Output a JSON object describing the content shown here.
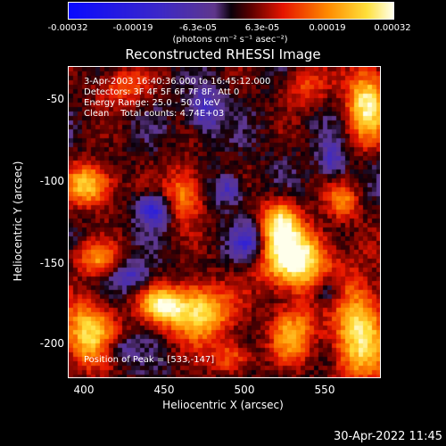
{
  "colorbar": {
    "ticks": [
      "-0.00032",
      "-0.00019",
      "-6.3e-05",
      "6.3e-05",
      "0.00019",
      "0.00032"
    ],
    "tick_values": [
      -0.00032,
      -0.00019,
      -6.3e-05,
      6.3e-05,
      0.00019,
      0.00032
    ],
    "units": "(photons cm⁻² s⁻¹ asec⁻²)"
  },
  "chart_data": {
    "type": "heatmap",
    "title": "Reconstructed RHESSI Image",
    "xlabel": "Heliocentric X (arcsec)",
    "ylabel": "Heliocentric Y (arcsec)",
    "xlim": [
      387,
      583
    ],
    "ylim": [
      -222,
      -33
    ],
    "xticks": [
      400,
      450,
      500,
      550
    ],
    "yticks": [
      -50,
      -100,
      -150,
      -200
    ],
    "zlim": [
      -0.00032,
      0.00032
    ],
    "peak": [
      533,
      -147
    ],
    "features": [
      {
        "x": 530,
        "y": -150,
        "amp": 1.0,
        "sx": 15,
        "sy": 13
      },
      {
        "x": 520,
        "y": -128,
        "amp": 0.7,
        "sx": 8,
        "sy": 10
      },
      {
        "x": 468,
        "y": -182,
        "amp": 0.85,
        "sx": 14,
        "sy": 12
      },
      {
        "x": 445,
        "y": -178,
        "amp": 0.7,
        "sx": 9,
        "sy": 7
      },
      {
        "x": 400,
        "y": -195,
        "amp": 0.75,
        "sx": 12,
        "sy": 14
      },
      {
        "x": 570,
        "y": -195,
        "amp": 0.8,
        "sx": 12,
        "sy": 22
      },
      {
        "x": 575,
        "y": -55,
        "amp": 0.85,
        "sx": 9,
        "sy": 16
      },
      {
        "x": 400,
        "y": -105,
        "amp": 0.75,
        "sx": 11,
        "sy": 9
      },
      {
        "x": 460,
        "y": -110,
        "amp": 0.55,
        "sx": 8,
        "sy": 12
      },
      {
        "x": 528,
        "y": -195,
        "amp": 0.6,
        "sx": 10,
        "sy": 12
      },
      {
        "x": 405,
        "y": -150,
        "amp": 0.5,
        "sx": 10,
        "sy": 7
      },
      {
        "x": 560,
        "y": -115,
        "amp": 0.5,
        "sx": 7,
        "sy": 8
      },
      {
        "x": 490,
        "y": -210,
        "amp": 0.45,
        "sx": 9,
        "sy": 7
      },
      {
        "x": 420,
        "y": -45,
        "amp": 0.4,
        "sx": 12,
        "sy": 8
      },
      {
        "x": 535,
        "y": -45,
        "amp": 0.35,
        "sx": 10,
        "sy": 8
      },
      {
        "x": 440,
        "y": -120,
        "amp": -0.6,
        "sx": 7,
        "sy": 6
      },
      {
        "x": 500,
        "y": -140,
        "amp": -0.5,
        "sx": 7,
        "sy": 7
      },
      {
        "x": 473,
        "y": -60,
        "amp": -0.5,
        "sx": 7,
        "sy": 9
      },
      {
        "x": 488,
        "y": -108,
        "amp": -0.45,
        "sx": 6,
        "sy": 6
      },
      {
        "x": 550,
        "y": -170,
        "amp": -0.4,
        "sx": 6,
        "sy": 7
      },
      {
        "x": 425,
        "y": -160,
        "amp": -0.4,
        "sx": 8,
        "sy": 6
      },
      {
        "x": 553,
        "y": -90,
        "amp": -0.4,
        "sx": 6,
        "sy": 8
      },
      {
        "x": 418,
        "y": -205,
        "amp": -0.35,
        "sx": 8,
        "sy": 6
      }
    ]
  },
  "annotations": {
    "line1": "3-Apr-2003 16:40:36.000 to 16:45:12.000",
    "line2": "Detectors: 3F 4F 5F 6F 7F 8F, Att 0",
    "line3": "Energy Range: 25.0 - 50.0 keV",
    "line4": "Clean    Total counts: 4.74E+03",
    "peak": "Position of Peak = [533,-147]"
  },
  "timestamp": "30-Apr-2022 11:45"
}
